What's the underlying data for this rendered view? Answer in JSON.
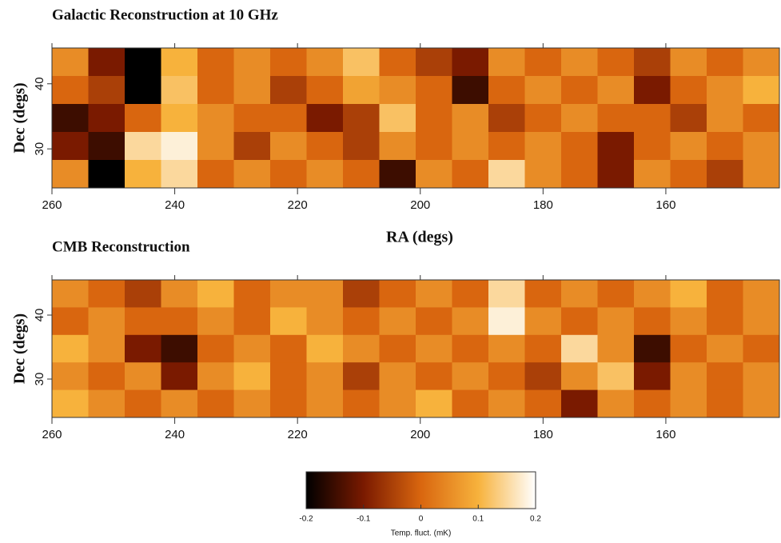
{
  "chart_data": [
    {
      "type": "heatmap",
      "title": "Galactic Reconstruction at 10 GHz",
      "xlabel": "RA (degs)",
      "ylabel": "Dec (degs)",
      "xlim": [
        260,
        141.5
      ],
      "ylim": [
        24,
        45.5
      ],
      "xticks": [
        260,
        240,
        220,
        200,
        180,
        160
      ],
      "yticks": [
        30,
        40
      ],
      "z": [
        [
          0.05,
          -0.1,
          -0.2,
          0.1,
          0.0,
          0.05,
          0.0,
          0.05,
          0.12,
          0.0,
          -0.05,
          -0.1,
          0.05,
          0.0,
          0.05,
          0.0,
          -0.05,
          0.05,
          0.0,
          0.05
        ],
        [
          0.0,
          -0.05,
          -0.2,
          0.12,
          0.0,
          0.05,
          -0.05,
          0.0,
          0.08,
          0.05,
          0.0,
          -0.15,
          0.0,
          0.05,
          0.0,
          0.05,
          -0.1,
          0.0,
          0.05,
          0.1
        ],
        [
          -0.15,
          -0.1,
          0.0,
          0.1,
          0.05,
          0.0,
          0.0,
          -0.1,
          -0.05,
          0.12,
          0.0,
          0.05,
          -0.05,
          0.0,
          0.05,
          0.0,
          0.0,
          -0.05,
          0.05,
          0.0
        ],
        [
          -0.1,
          -0.15,
          0.15,
          0.18,
          0.05,
          -0.05,
          0.05,
          0.0,
          -0.05,
          0.05,
          0.0,
          0.05,
          0.0,
          0.05,
          0.0,
          -0.1,
          0.0,
          0.05,
          0.0,
          0.05
        ],
        [
          0.05,
          -0.2,
          0.1,
          0.15,
          0.0,
          0.05,
          0.0,
          0.05,
          0.0,
          -0.15,
          0.05,
          0.0,
          0.15,
          0.05,
          0.0,
          -0.1,
          0.05,
          0.0,
          -0.05,
          0.05
        ]
      ]
    },
    {
      "type": "heatmap",
      "title": "CMB Reconstruction",
      "ylabel": "Dec (degs)",
      "xlim": [
        260,
        141.5
      ],
      "ylim": [
        24,
        45.5
      ],
      "xticks": [
        260,
        240,
        220,
        200,
        180,
        160
      ],
      "yticks": [
        30,
        40
      ],
      "z": [
        [
          0.05,
          0.0,
          -0.05,
          0.05,
          0.1,
          0.0,
          0.05,
          0.05,
          -0.05,
          0.0,
          0.05,
          0.0,
          0.15,
          0.0,
          0.05,
          0.0,
          0.05,
          0.1,
          0.0,
          0.05
        ],
        [
          0.0,
          0.05,
          0.0,
          0.0,
          0.05,
          0.0,
          0.1,
          0.05,
          0.0,
          0.05,
          0.0,
          0.05,
          0.18,
          0.05,
          0.0,
          0.05,
          0.0,
          0.05,
          0.0,
          0.05
        ],
        [
          0.1,
          0.05,
          -0.1,
          -0.15,
          0.0,
          0.05,
          0.0,
          0.1,
          0.05,
          0.0,
          0.05,
          0.0,
          0.05,
          0.0,
          0.15,
          0.05,
          -0.15,
          0.0,
          0.05,
          0.0
        ],
        [
          0.05,
          0.0,
          0.05,
          -0.1,
          0.05,
          0.1,
          0.0,
          0.05,
          -0.05,
          0.05,
          0.0,
          0.05,
          0.0,
          -0.05,
          0.05,
          0.12,
          -0.1,
          0.05,
          0.0,
          0.05
        ],
        [
          0.1,
          0.05,
          0.0,
          0.05,
          0.0,
          0.05,
          0.0,
          0.05,
          0.0,
          0.05,
          0.1,
          0.0,
          0.05,
          0.0,
          -0.1,
          0.05,
          0.0,
          0.05,
          0.0,
          0.05
        ]
      ]
    }
  ],
  "colorbar": {
    "label": "Temp. fluct. (mK)",
    "zlim": [
      -0.2,
      0.2
    ],
    "ticks": [
      -0.2,
      -0.1,
      0,
      0.1,
      0.2
    ],
    "colors": [
      "#000000",
      "#7a1a00",
      "#d9660f",
      "#f7b23c",
      "#ffffff"
    ]
  }
}
